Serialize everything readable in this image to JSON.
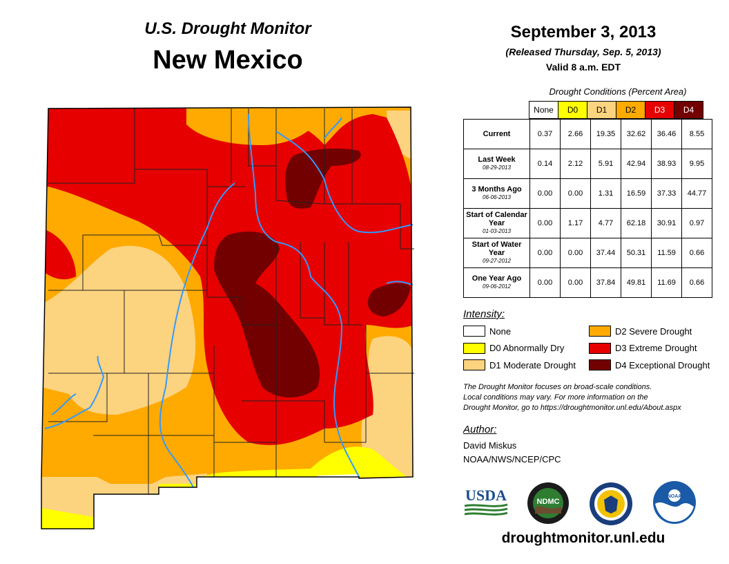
{
  "header": {
    "subtitle": "U.S. Drought Monitor",
    "region": "New Mexico",
    "date": "September 3, 2013",
    "released": "(Released Thursday, Sep. 5, 2013)",
    "valid": "Valid 8 a.m. EDT"
  },
  "table": {
    "caption": "Drought Conditions (Percent Area)",
    "columns": [
      "None",
      "D0",
      "D1",
      "D2",
      "D3",
      "D4"
    ],
    "column_colors": [
      "#ffffff",
      "#ffff00",
      "#fcd37f",
      "#ffaa00",
      "#e60000",
      "#730000"
    ],
    "rows": [
      {
        "label": "Current",
        "date": "",
        "values": [
          "0.37",
          "2.66",
          "19.35",
          "32.62",
          "36.46",
          "8.55"
        ]
      },
      {
        "label": "Last Week",
        "date": "08-29-2013",
        "values": [
          "0.14",
          "2.12",
          "5.91",
          "42.94",
          "38.93",
          "9.95"
        ]
      },
      {
        "label": "3 Months Ago",
        "date": "06-06-2013",
        "values": [
          "0.00",
          "0.00",
          "1.31",
          "16.59",
          "37.33",
          "44.77"
        ]
      },
      {
        "label": "Start of Calendar Year",
        "date": "01-03-2013",
        "values": [
          "0.00",
          "1.17",
          "4.77",
          "62.18",
          "30.91",
          "0.97"
        ]
      },
      {
        "label": "Start of Water Year",
        "date": "09-27-2012",
        "values": [
          "0.00",
          "0.00",
          "37.44",
          "50.31",
          "11.59",
          "0.66"
        ]
      },
      {
        "label": "One Year Ago",
        "date": "09-06-2012",
        "values": [
          "0.00",
          "0.00",
          "37.84",
          "49.81",
          "11.69",
          "0.66"
        ]
      }
    ]
  },
  "legend": {
    "title": "Intensity:",
    "items": [
      {
        "label": "None",
        "color": "#ffffff"
      },
      {
        "label": "D0 Abnormally Dry",
        "color": "#ffff00"
      },
      {
        "label": "D1 Moderate Drought",
        "color": "#fcd37f"
      },
      {
        "label": "D2 Severe Drought",
        "color": "#ffaa00"
      },
      {
        "label": "D3 Extreme Drought",
        "color": "#e60000"
      },
      {
        "label": "D4 Exceptional Drought",
        "color": "#730000"
      }
    ]
  },
  "note": {
    "line1": "The Drought Monitor focuses on broad-scale conditions.",
    "line2": "Local conditions may vary. For more information on the",
    "line3": "Drought Monitor, go to https://droughtmonitor.unl.edu/About.aspx"
  },
  "author": {
    "title": "Author:",
    "name": "David Miskus",
    "org": "NOAA/NWS/NCEP/CPC"
  },
  "logos": {
    "usda": "USDA",
    "ndmc": "NDMC",
    "noaa": "NOAA"
  },
  "website": "droughtmonitor.unl.edu"
}
